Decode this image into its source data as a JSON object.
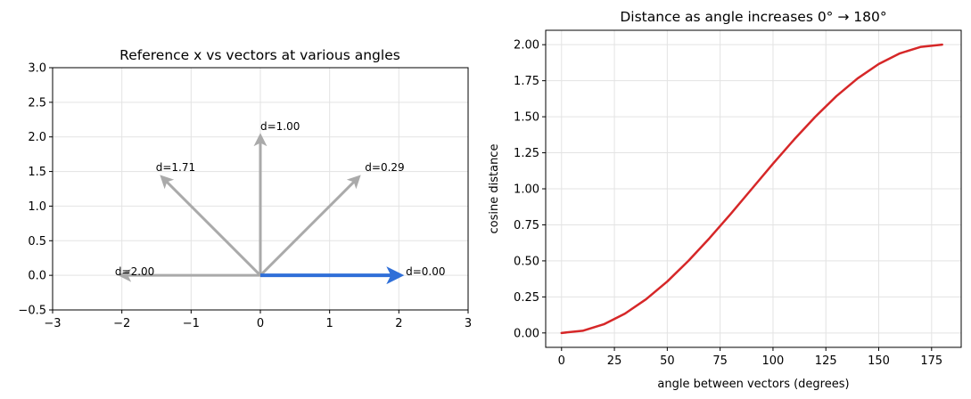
{
  "chart_data": [
    {
      "type": "vector",
      "title": "Reference x vs vectors at various angles",
      "xlim": [
        -3,
        3
      ],
      "ylim": [
        -0.5,
        3.0
      ],
      "xticks": [
        -3,
        -2,
        -1,
        0,
        1,
        2,
        3
      ],
      "xtick_labels": [
        "−3",
        "−2",
        "−1",
        "0",
        "1",
        "2",
        "3"
      ],
      "yticks": [
        -0.5,
        0.0,
        0.5,
        1.0,
        1.5,
        2.0,
        2.5,
        3.0
      ],
      "ytick_labels": [
        "−0.5",
        "0.0",
        "0.5",
        "1.0",
        "1.5",
        "2.0",
        "2.5",
        "3.0"
      ],
      "grid": true,
      "reference_vector": {
        "x": 2.0,
        "y": 0.0,
        "color": "#2f6fd8"
      },
      "vector_color": "#aaaaaa",
      "vectors": [
        {
          "x": 2.0,
          "y": 0.0,
          "label": "d=0.00",
          "lx": 2.1,
          "ly": 0.0
        },
        {
          "x": 1.41,
          "y": 1.41,
          "label": "d=0.29",
          "lx": 1.51,
          "ly": 1.51
        },
        {
          "x": 0.0,
          "y": 2.0,
          "label": "d=1.00",
          "lx": 0.0,
          "ly": 2.1
        },
        {
          "x": -1.41,
          "y": 1.41,
          "label": "d=1.71",
          "lx": -1.51,
          "ly": 1.51
        },
        {
          "x": -2.0,
          "y": 0.0,
          "label": "d=2.00",
          "lx": -2.1,
          "ly": 0.0
        }
      ]
    },
    {
      "type": "line",
      "title": "Distance as angle increases 0° → 180°",
      "xlabel": "angle between vectors  (degrees)",
      "ylabel": "cosine distance",
      "xlim": [
        -7.5,
        189
      ],
      "ylim": [
        -0.1,
        2.1
      ],
      "xticks": [
        0,
        25,
        50,
        75,
        100,
        125,
        150,
        175
      ],
      "xtick_labels": [
        "0",
        "25",
        "50",
        "75",
        "100",
        "125",
        "150",
        "175"
      ],
      "yticks": [
        0.0,
        0.25,
        0.5,
        0.75,
        1.0,
        1.25,
        1.5,
        1.75,
        2.0
      ],
      "ytick_labels": [
        "0.00",
        "0.25",
        "0.50",
        "0.75",
        "1.00",
        "1.25",
        "1.50",
        "1.75",
        "2.00"
      ],
      "grid": true,
      "series": [
        {
          "color": "#d62728",
          "x": [
            0,
            10,
            20,
            30,
            40,
            50,
            60,
            70,
            80,
            90,
            100,
            110,
            120,
            130,
            140,
            150,
            160,
            170,
            180
          ],
          "values": [
            0.0,
            0.015,
            0.06,
            0.134,
            0.234,
            0.357,
            0.5,
            0.658,
            0.826,
            1.0,
            1.174,
            1.342,
            1.5,
            1.643,
            1.766,
            1.866,
            1.94,
            1.985,
            2.0
          ]
        }
      ]
    }
  ]
}
